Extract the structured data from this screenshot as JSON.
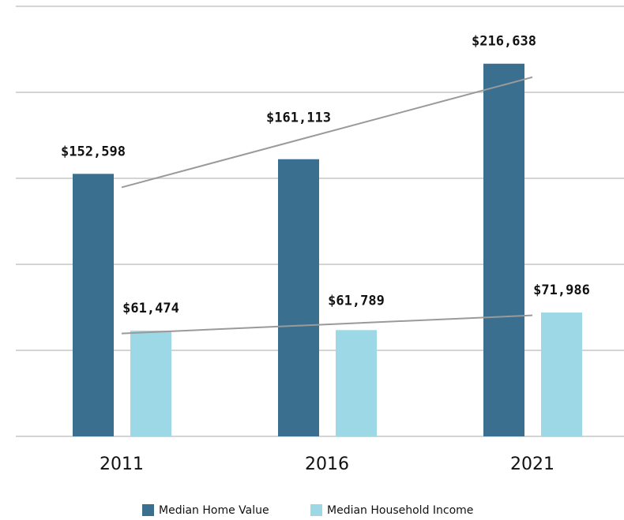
{
  "chart_data": {
    "type": "bar",
    "categories": [
      "2011",
      "2016",
      "2021"
    ],
    "series": [
      {
        "name": "Median Home Value",
        "color": "#3a6f8f",
        "values": [
          152598,
          161113,
          216638
        ],
        "value_labels": [
          "$152,598",
          "$161,113",
          "$216,638"
        ]
      },
      {
        "name": "Median Household Income",
        "color": "#9dd8e6",
        "values": [
          61474,
          61789,
          71986
        ],
        "value_labels": [
          "$61,474",
          "$61,789",
          "$71,986"
        ]
      }
    ],
    "ylim": [
      0,
      250000
    ],
    "yticks": [
      0,
      50000,
      100000,
      150000,
      200000,
      250000
    ],
    "grid": true,
    "trendline": true,
    "trendline_color": "#9a9a9a",
    "legend": "bottom"
  }
}
